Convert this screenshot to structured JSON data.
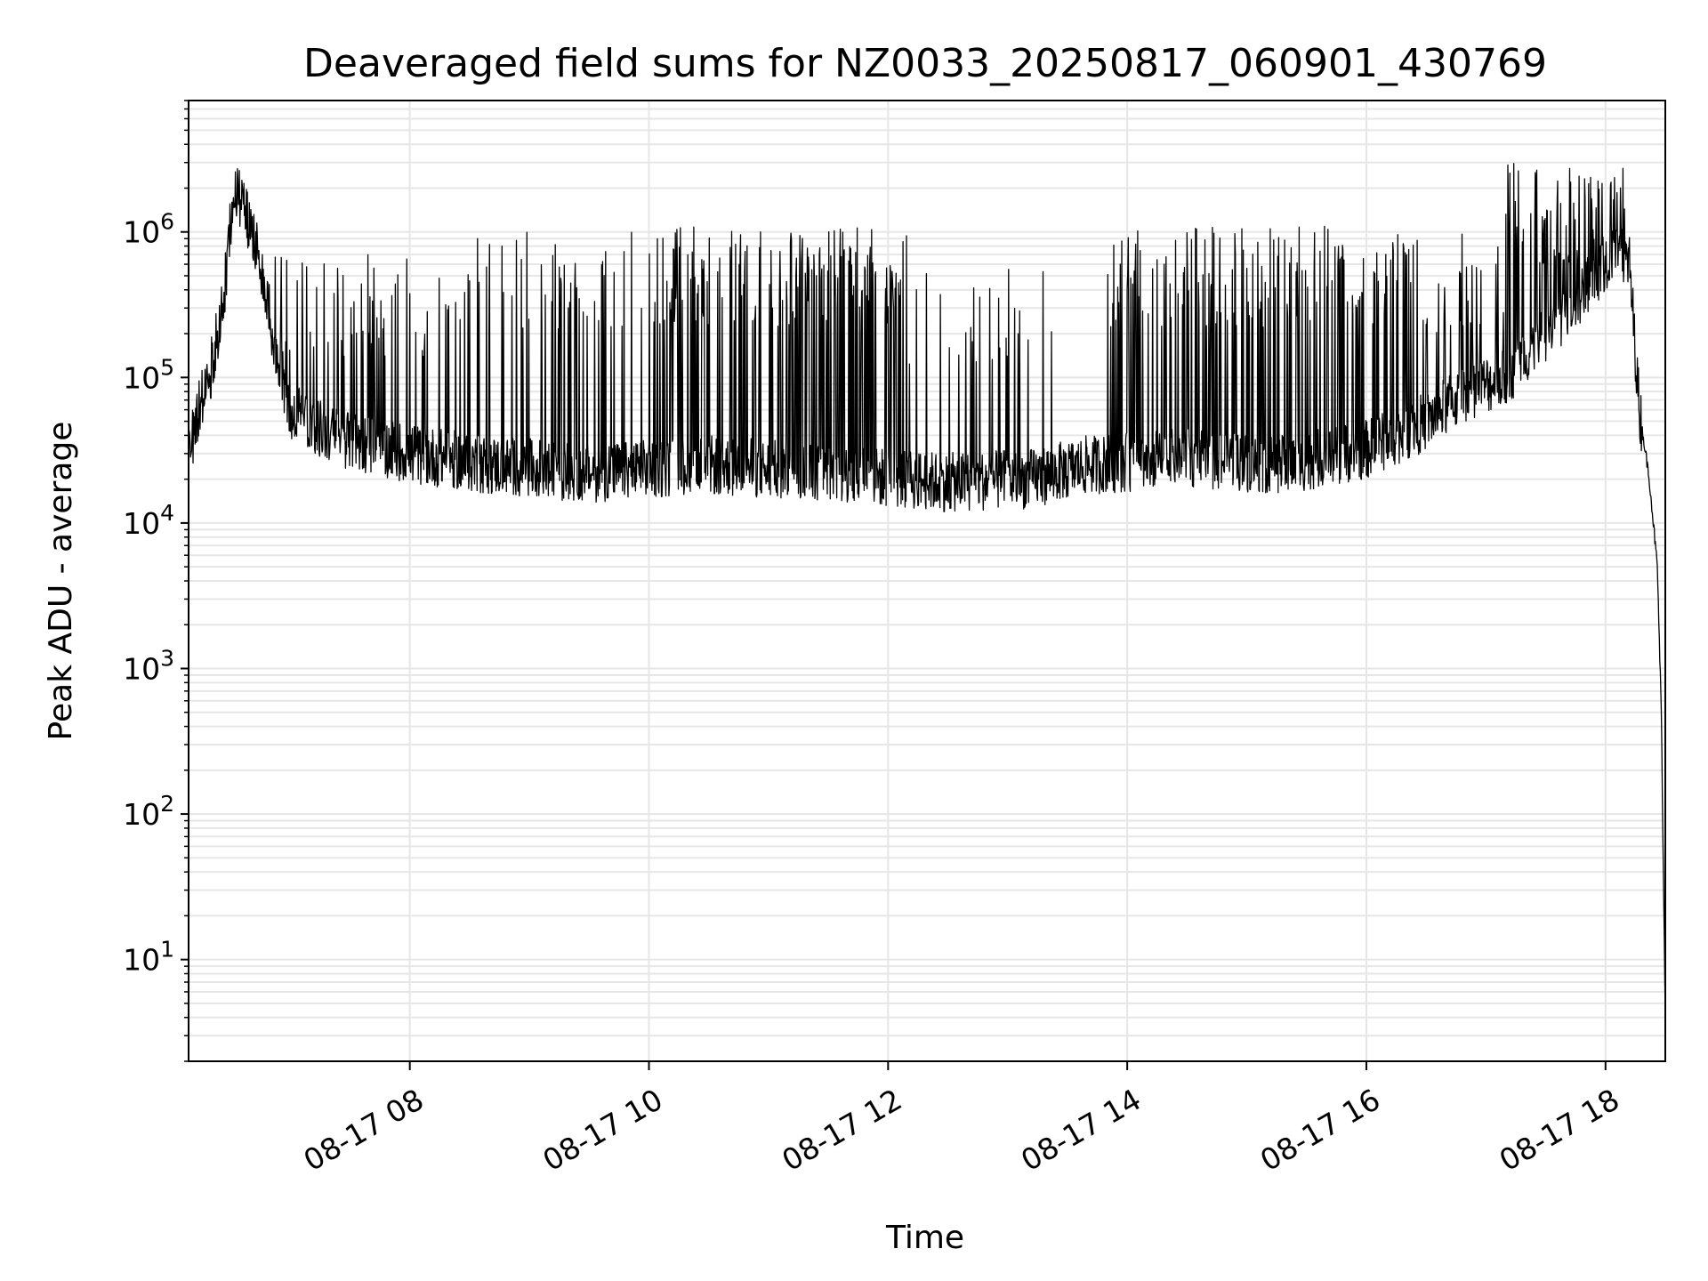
{
  "chart_data": {
    "type": "line",
    "title": "Deaveraged field sums for NZ0033_20250817_060901_430769",
    "xlabel": "Time",
    "ylabel": "Peak ADU - average",
    "yscale": "log",
    "ylim": [
      2,
      8000000
    ],
    "xlim": [
      "2025-08-17 06:09",
      "2025-08-17 18:30"
    ],
    "grid": true,
    "line_color": "#000000",
    "grid_color": "#e6e6e6",
    "x_ticks": [
      {
        "value": "2025-08-17 08:00",
        "label": "08-17 08"
      },
      {
        "value": "2025-08-17 10:00",
        "label": "08-17 10"
      },
      {
        "value": "2025-08-17 12:00",
        "label": "08-17 12"
      },
      {
        "value": "2025-08-17 14:00",
        "label": "08-17 14"
      },
      {
        "value": "2025-08-17 16:00",
        "label": "08-17 16"
      },
      {
        "value": "2025-08-17 18:00",
        "label": "08-17 18"
      }
    ],
    "y_ticks": [
      {
        "value": 10,
        "base": "10",
        "exp": "1"
      },
      {
        "value": 100,
        "base": "10",
        "exp": "2"
      },
      {
        "value": 1000,
        "base": "10",
        "exp": "3"
      },
      {
        "value": 10000,
        "base": "10",
        "exp": "4"
      },
      {
        "value": 100000,
        "base": "10",
        "exp": "5"
      },
      {
        "value": 1000000,
        "base": "10",
        "exp": "6"
      }
    ],
    "series": [
      {
        "baseline": [
          {
            "x": "2025-08-17 06:09",
            "y": 30000
          },
          {
            "x": "2025-08-17 06:14",
            "y": 60000
          },
          {
            "x": "2025-08-17 06:20",
            "y": 110000
          },
          {
            "x": "2025-08-17 06:26",
            "y": 300000
          },
          {
            "x": "2025-08-17 06:32",
            "y": 2000000
          },
          {
            "x": "2025-08-17 06:38",
            "y": 1300000
          },
          {
            "x": "2025-08-17 06:45",
            "y": 600000
          },
          {
            "x": "2025-08-17 06:52",
            "y": 180000
          },
          {
            "x": "2025-08-17 07:00",
            "y": 60000
          },
          {
            "x": "2025-08-17 07:20",
            "y": 40000
          },
          {
            "x": "2025-08-17 08:00",
            "y": 30000
          },
          {
            "x": "2025-08-17 08:40",
            "y": 25000
          },
          {
            "x": "2025-08-17 09:30",
            "y": 22000
          },
          {
            "x": "2025-08-17 10:30",
            "y": 25000
          },
          {
            "x": "2025-08-17 11:30",
            "y": 22000
          },
          {
            "x": "2025-08-17 12:30",
            "y": 19000
          },
          {
            "x": "2025-08-17 13:10",
            "y": 20000
          },
          {
            "x": "2025-08-17 13:40",
            "y": 25000
          },
          {
            "x": "2025-08-17 14:30",
            "y": 28000
          },
          {
            "x": "2025-08-17 15:20",
            "y": 25000
          },
          {
            "x": "2025-08-17 16:00",
            "y": 32000
          },
          {
            "x": "2025-08-17 16:30",
            "y": 50000
          },
          {
            "x": "2025-08-17 16:50",
            "y": 80000
          },
          {
            "x": "2025-08-17 17:10",
            "y": 100000
          },
          {
            "x": "2025-08-17 17:30",
            "y": 200000
          },
          {
            "x": "2025-08-17 17:50",
            "y": 400000
          },
          {
            "x": "2025-08-17 18:05",
            "y": 800000
          },
          {
            "x": "2025-08-17 18:12",
            "y": 600000
          },
          {
            "x": "2025-08-17 18:17",
            "y": 60000
          },
          {
            "x": "2025-08-17 18:22",
            "y": 20000
          },
          {
            "x": "2025-08-17 18:26",
            "y": 5000
          },
          {
            "x": "2025-08-17 18:28",
            "y": 500
          },
          {
            "x": "2025-08-17 18:30",
            "y": 4
          }
        ],
        "noise_factor": 1.6,
        "spike_bands": [
          {
            "start": "2025-08-17 06:50",
            "end": "2025-08-17 08:20",
            "spikes_per_hour": 40,
            "peak": 700000
          },
          {
            "start": "2025-08-17 08:20",
            "end": "2025-08-17 10:10",
            "spikes_per_hour": 35,
            "peak": 1000000
          },
          {
            "start": "2025-08-17 10:10",
            "end": "2025-08-17 12:10",
            "spikes_per_hour": 70,
            "peak": 1100000
          },
          {
            "start": "2025-08-17 12:10",
            "end": "2025-08-17 13:30",
            "spikes_per_hour": 30,
            "peak": 600000
          },
          {
            "start": "2025-08-17 13:50",
            "end": "2025-08-17 16:00",
            "spikes_per_hour": 55,
            "peak": 1100000
          },
          {
            "start": "2025-08-17 16:00",
            "end": "2025-08-17 17:10",
            "spikes_per_hour": 40,
            "peak": 1000000
          },
          {
            "start": "2025-08-17 17:10",
            "end": "2025-08-17 18:10",
            "spikes_per_hour": 80,
            "peak": 3000000
          }
        ]
      }
    ]
  }
}
